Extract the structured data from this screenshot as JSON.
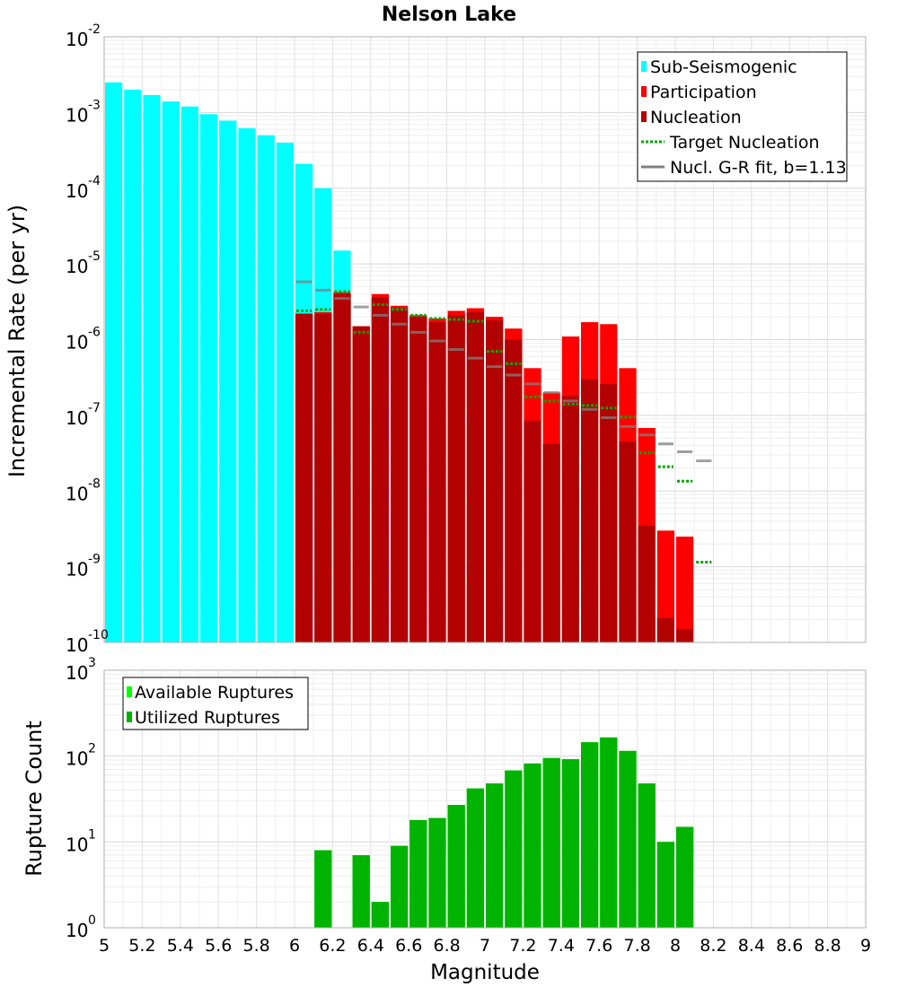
{
  "chart_data": {
    "title": "Nelson Lake",
    "xlabel": "Magnitude",
    "xlim": [
      5,
      9
    ],
    "x_ticks": [
      "5",
      "5.2",
      "5.4",
      "5.6",
      "5.8",
      "6",
      "6.2",
      "6.4",
      "6.6",
      "6.8",
      "7",
      "7.2",
      "7.4",
      "7.6",
      "7.8",
      "8",
      "8.2",
      "8.4",
      "8.6",
      "8.8",
      "9"
    ],
    "bin_width": 0.1,
    "panels": [
      {
        "type": "bar",
        "scale": "log",
        "ylabel": "Incremental Rate (per yr)",
        "ylim_exp": [
          -10,
          -2
        ],
        "legend_position": "top-right",
        "series": [
          {
            "name": "Sub-Seismogenic",
            "kind": "bar",
            "color": "#00ffff",
            "x": [
              5.05,
              5.15,
              5.25,
              5.35,
              5.45,
              5.55,
              5.65,
              5.75,
              5.85,
              5.95,
              6.05,
              6.15,
              6.25
            ],
            "values": [
              0.0025,
              0.002,
              0.0017,
              0.0014,
              0.0012,
              0.00095,
              0.00078,
              0.00062,
              0.0005,
              0.0004,
              0.00021,
              0.0001,
              1.5e-05
            ]
          },
          {
            "name": "Participation",
            "kind": "bar",
            "color": "#ff0000",
            "x": [
              6.05,
              6.15,
              6.25,
              6.35,
              6.45,
              6.55,
              6.65,
              6.75,
              6.85,
              6.95,
              7.05,
              7.15,
              7.25,
              7.35,
              7.45,
              7.55,
              7.65,
              7.75,
              7.85,
              7.95,
              8.05
            ],
            "values": [
              2.2e-06,
              2.3e-06,
              4.2e-06,
              1.5e-06,
              4e-06,
              2.8e-06,
              2.1e-06,
              1.9e-06,
              2.4e-06,
              2.6e-06,
              2e-06,
              1.4e-06,
              4.2e-07,
              2e-07,
              1.1e-06,
              1.7e-06,
              1.6e-06,
              4.2e-07,
              6.8e-08,
              3e-09,
              2.5e-09
            ]
          },
          {
            "name": "Nucleation",
            "kind": "bar",
            "color": "#b30000",
            "x": [
              6.05,
              6.15,
              6.25,
              6.35,
              6.45,
              6.55,
              6.65,
              6.75,
              6.85,
              6.95,
              7.05,
              7.15,
              7.25,
              7.35,
              7.45,
              7.55,
              7.65,
              7.75,
              7.85,
              7.95,
              8.05
            ],
            "values": [
              2.2e-06,
              2.2e-06,
              4e-06,
              1.5e-06,
              3.6e-06,
              2.6e-06,
              2e-06,
              1.7e-06,
              2.1e-06,
              2.3e-06,
              1.8e-06,
              1e-06,
              8.5e-08,
              4.2e-08,
              1.8e-07,
              3e-07,
              2.6e-07,
              4.5e-08,
              3.5e-09,
              2.1e-10,
              1.5e-10
            ]
          },
          {
            "name": "Target Nucleation",
            "kind": "dotted",
            "color": "#00aa00",
            "x": [
              6.05,
              6.15,
              6.25,
              6.35,
              6.45,
              6.55,
              6.65,
              6.75,
              6.85,
              6.95,
              7.05,
              7.15,
              7.25,
              7.35,
              7.45,
              7.55,
              7.65,
              7.75,
              7.85,
              7.95,
              8.05,
              8.15
            ],
            "values": [
              2.4e-06,
              2.5e-06,
              4.3e-06,
              1.25e-06,
              2.9e-06,
              2.5e-06,
              2.1e-06,
              1.9e-06,
              1.85e-06,
              1.75e-06,
              7e-07,
              4.8e-07,
              1.75e-07,
              1.55e-07,
              1.4e-07,
              1.35e-07,
              1.25e-07,
              9.5e-08,
              3.2e-08,
              2.1e-08,
              1.35e-08,
              1.15e-09
            ]
          },
          {
            "name": "Nucl. G-R fit, b=1.13",
            "kind": "dash",
            "color": "#808080",
            "x": [
              6.05,
              6.15,
              6.25,
              6.35,
              6.45,
              6.55,
              6.65,
              6.75,
              6.85,
              6.95,
              7.05,
              7.15,
              7.25,
              7.35,
              7.45,
              7.55,
              7.65,
              7.75,
              7.85,
              7.95,
              8.05,
              8.15
            ],
            "values": [
              5.8e-06,
              4.5e-06,
              3.5e-06,
              2.7e-06,
              2.1e-06,
              1.6e-06,
              1.25e-06,
              9.6e-07,
              7.4e-07,
              5.7e-07,
              4.4e-07,
              3.4e-07,
              2.6e-07,
              2e-07,
              1.55e-07,
              1.2e-07,
              9.3e-08,
              7.1e-08,
              5.5e-08,
              4.2e-08,
              3.3e-08,
              2.5e-08
            ]
          }
        ]
      },
      {
        "type": "bar",
        "scale": "log",
        "ylabel": "Rupture Count",
        "ylim_exp": [
          0,
          3
        ],
        "legend_position": "top-left",
        "series": [
          {
            "name": "Available Ruptures",
            "kind": "bar",
            "color": "#00ff00",
            "x": [
              6.15,
              6.35,
              6.45,
              6.55,
              6.65,
              6.75,
              6.85,
              6.95,
              7.05,
              7.15,
              7.25,
              7.35,
              7.45,
              7.55,
              7.65,
              7.75,
              7.85,
              7.95,
              8.05
            ],
            "values": [
              8,
              7,
              2,
              9,
              18,
              19,
              27,
              42,
              48,
              68,
              82,
              95,
              92,
              145,
              165,
              115,
              48,
              10,
              15
            ]
          },
          {
            "name": "Utilized Ruptures",
            "kind": "bar",
            "color": "#00b300",
            "x": [
              6.15,
              6.35,
              6.45,
              6.55,
              6.65,
              6.75,
              6.85,
              6.95,
              7.05,
              7.15,
              7.25,
              7.35,
              7.45,
              7.55,
              7.65,
              7.75,
              7.85,
              7.95,
              8.05
            ],
            "values": [
              8,
              7,
              2,
              9,
              18,
              19,
              27,
              42,
              48,
              68,
              82,
              95,
              92,
              145,
              165,
              115,
              48,
              10,
              15
            ]
          }
        ]
      }
    ]
  }
}
